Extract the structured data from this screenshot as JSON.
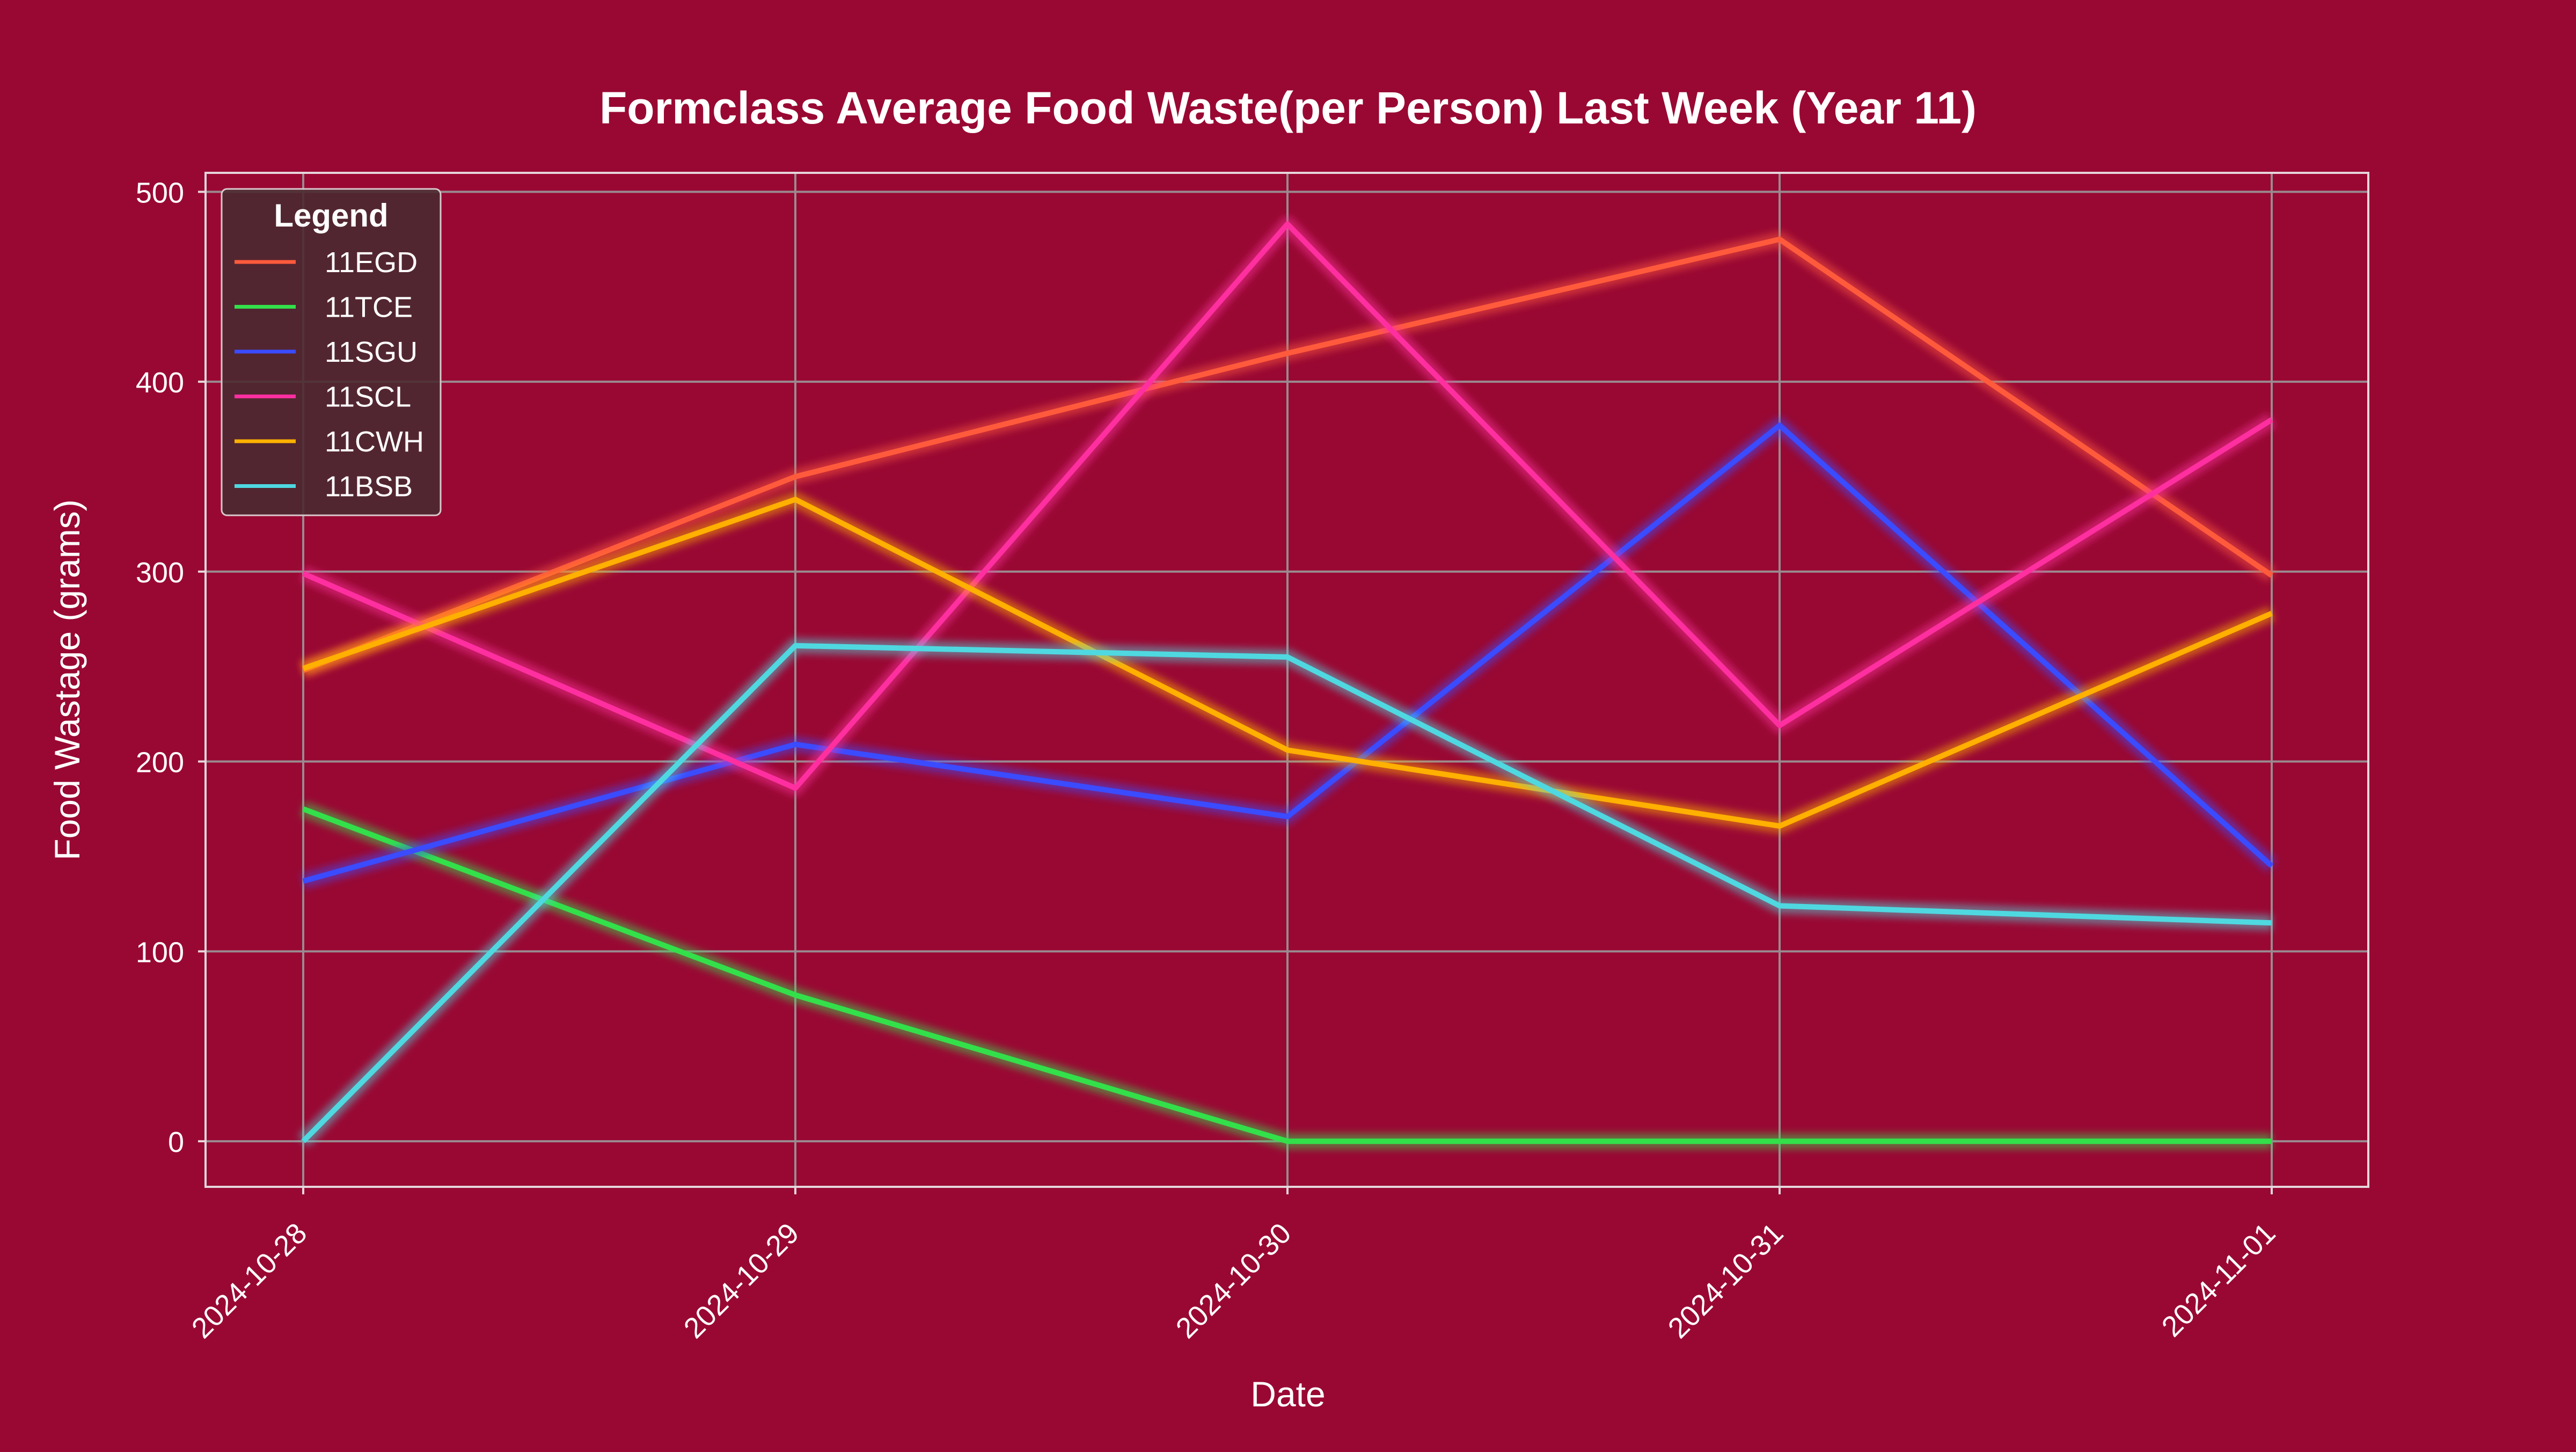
{
  "chart_data": {
    "type": "line",
    "title": "Formclass Average Food Waste(per Person) Last Week (Year 11)",
    "xlabel": "Date",
    "ylabel": "Food Wastage (grams)",
    "x": [
      "2024-10-28",
      "2024-10-29",
      "2024-10-30",
      "2024-10-31",
      "2024-11-01"
    ],
    "yticks": [
      0,
      100,
      200,
      300,
      400,
      500
    ],
    "ylim": [
      -24,
      510
    ],
    "grid": true,
    "legend": {
      "title": "Legend",
      "placement": "top-left"
    },
    "series": [
      {
        "name": "11EGD",
        "color": "#ff5a3c",
        "values": [
          248,
          350,
          415,
          475,
          298
        ]
      },
      {
        "name": "11TCE",
        "color": "#33e04a",
        "values": [
          175,
          77,
          0,
          0,
          0
        ]
      },
      {
        "name": "11SGU",
        "color": "#3b4bff",
        "values": [
          137,
          209,
          171,
          377,
          145
        ]
      },
      {
        "name": "11SCL",
        "color": "#ff2fa0",
        "values": [
          299,
          186,
          483,
          219,
          380
        ]
      },
      {
        "name": "11CWH",
        "color": "#ffb000",
        "values": [
          249,
          338,
          206,
          166,
          278
        ]
      },
      {
        "name": "11BSB",
        "color": "#4fd8e0",
        "values": [
          0,
          261,
          255,
          124,
          115
        ]
      }
    ]
  }
}
